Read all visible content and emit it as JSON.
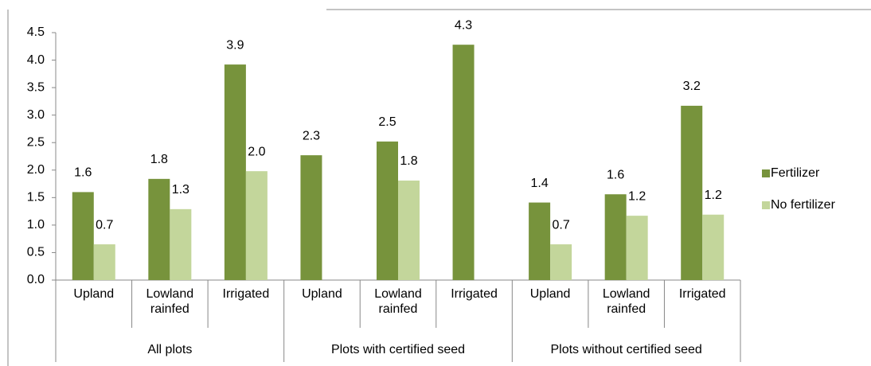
{
  "chart_data": {
    "type": "bar",
    "groups": [
      {
        "name": "All plots",
        "categories": [
          "Upland",
          "Lowland rainfed",
          "Irrigated"
        ]
      },
      {
        "name": "Plots with certified seed",
        "categories": [
          "Upland",
          "Lowland rainfed",
          "Irrigated"
        ]
      },
      {
        "name": "Plots without certified seed",
        "categories": [
          "Upland",
          "Lowland rainfed",
          "Irrigated"
        ]
      }
    ],
    "series": [
      {
        "name": "Fertilizer",
        "color": "#77933c",
        "values": [
          1.6,
          1.84,
          3.92,
          2.27,
          2.52,
          4.28,
          1.41,
          1.56,
          3.17
        ],
        "value_labels": [
          "1.6",
          "1.8",
          "3.9",
          "2.3",
          "2.5",
          "4.3",
          "1.4",
          "1.6",
          "3.2"
        ]
      },
      {
        "name": "No fertilizer",
        "color": "#c3d69b",
        "values": [
          0.65,
          1.29,
          1.98,
          null,
          1.81,
          null,
          0.65,
          1.17,
          1.19
        ],
        "value_labels": [
          "0.7",
          "1.3",
          "2.0",
          null,
          "1.8",
          null,
          "0.7",
          "1.2",
          "1.2"
        ]
      }
    ],
    "ylim": [
      0,
      4.5
    ],
    "yticks": [
      {
        "value": 0,
        "label": "0.0"
      },
      {
        "value": 0.5,
        "label": "0.5"
      },
      {
        "value": 1,
        "label": "1.0"
      },
      {
        "value": 1.5,
        "label": "1.5"
      },
      {
        "value": 2,
        "label": "2.0"
      },
      {
        "value": 2.5,
        "label": "2.5"
      },
      {
        "value": 3,
        "label": "3.0"
      },
      {
        "value": 3.5,
        "label": "3.5"
      },
      {
        "value": 4,
        "label": "4.0"
      },
      {
        "value": 4.5,
        "label": "4.5"
      }
    ],
    "legend": "right"
  }
}
